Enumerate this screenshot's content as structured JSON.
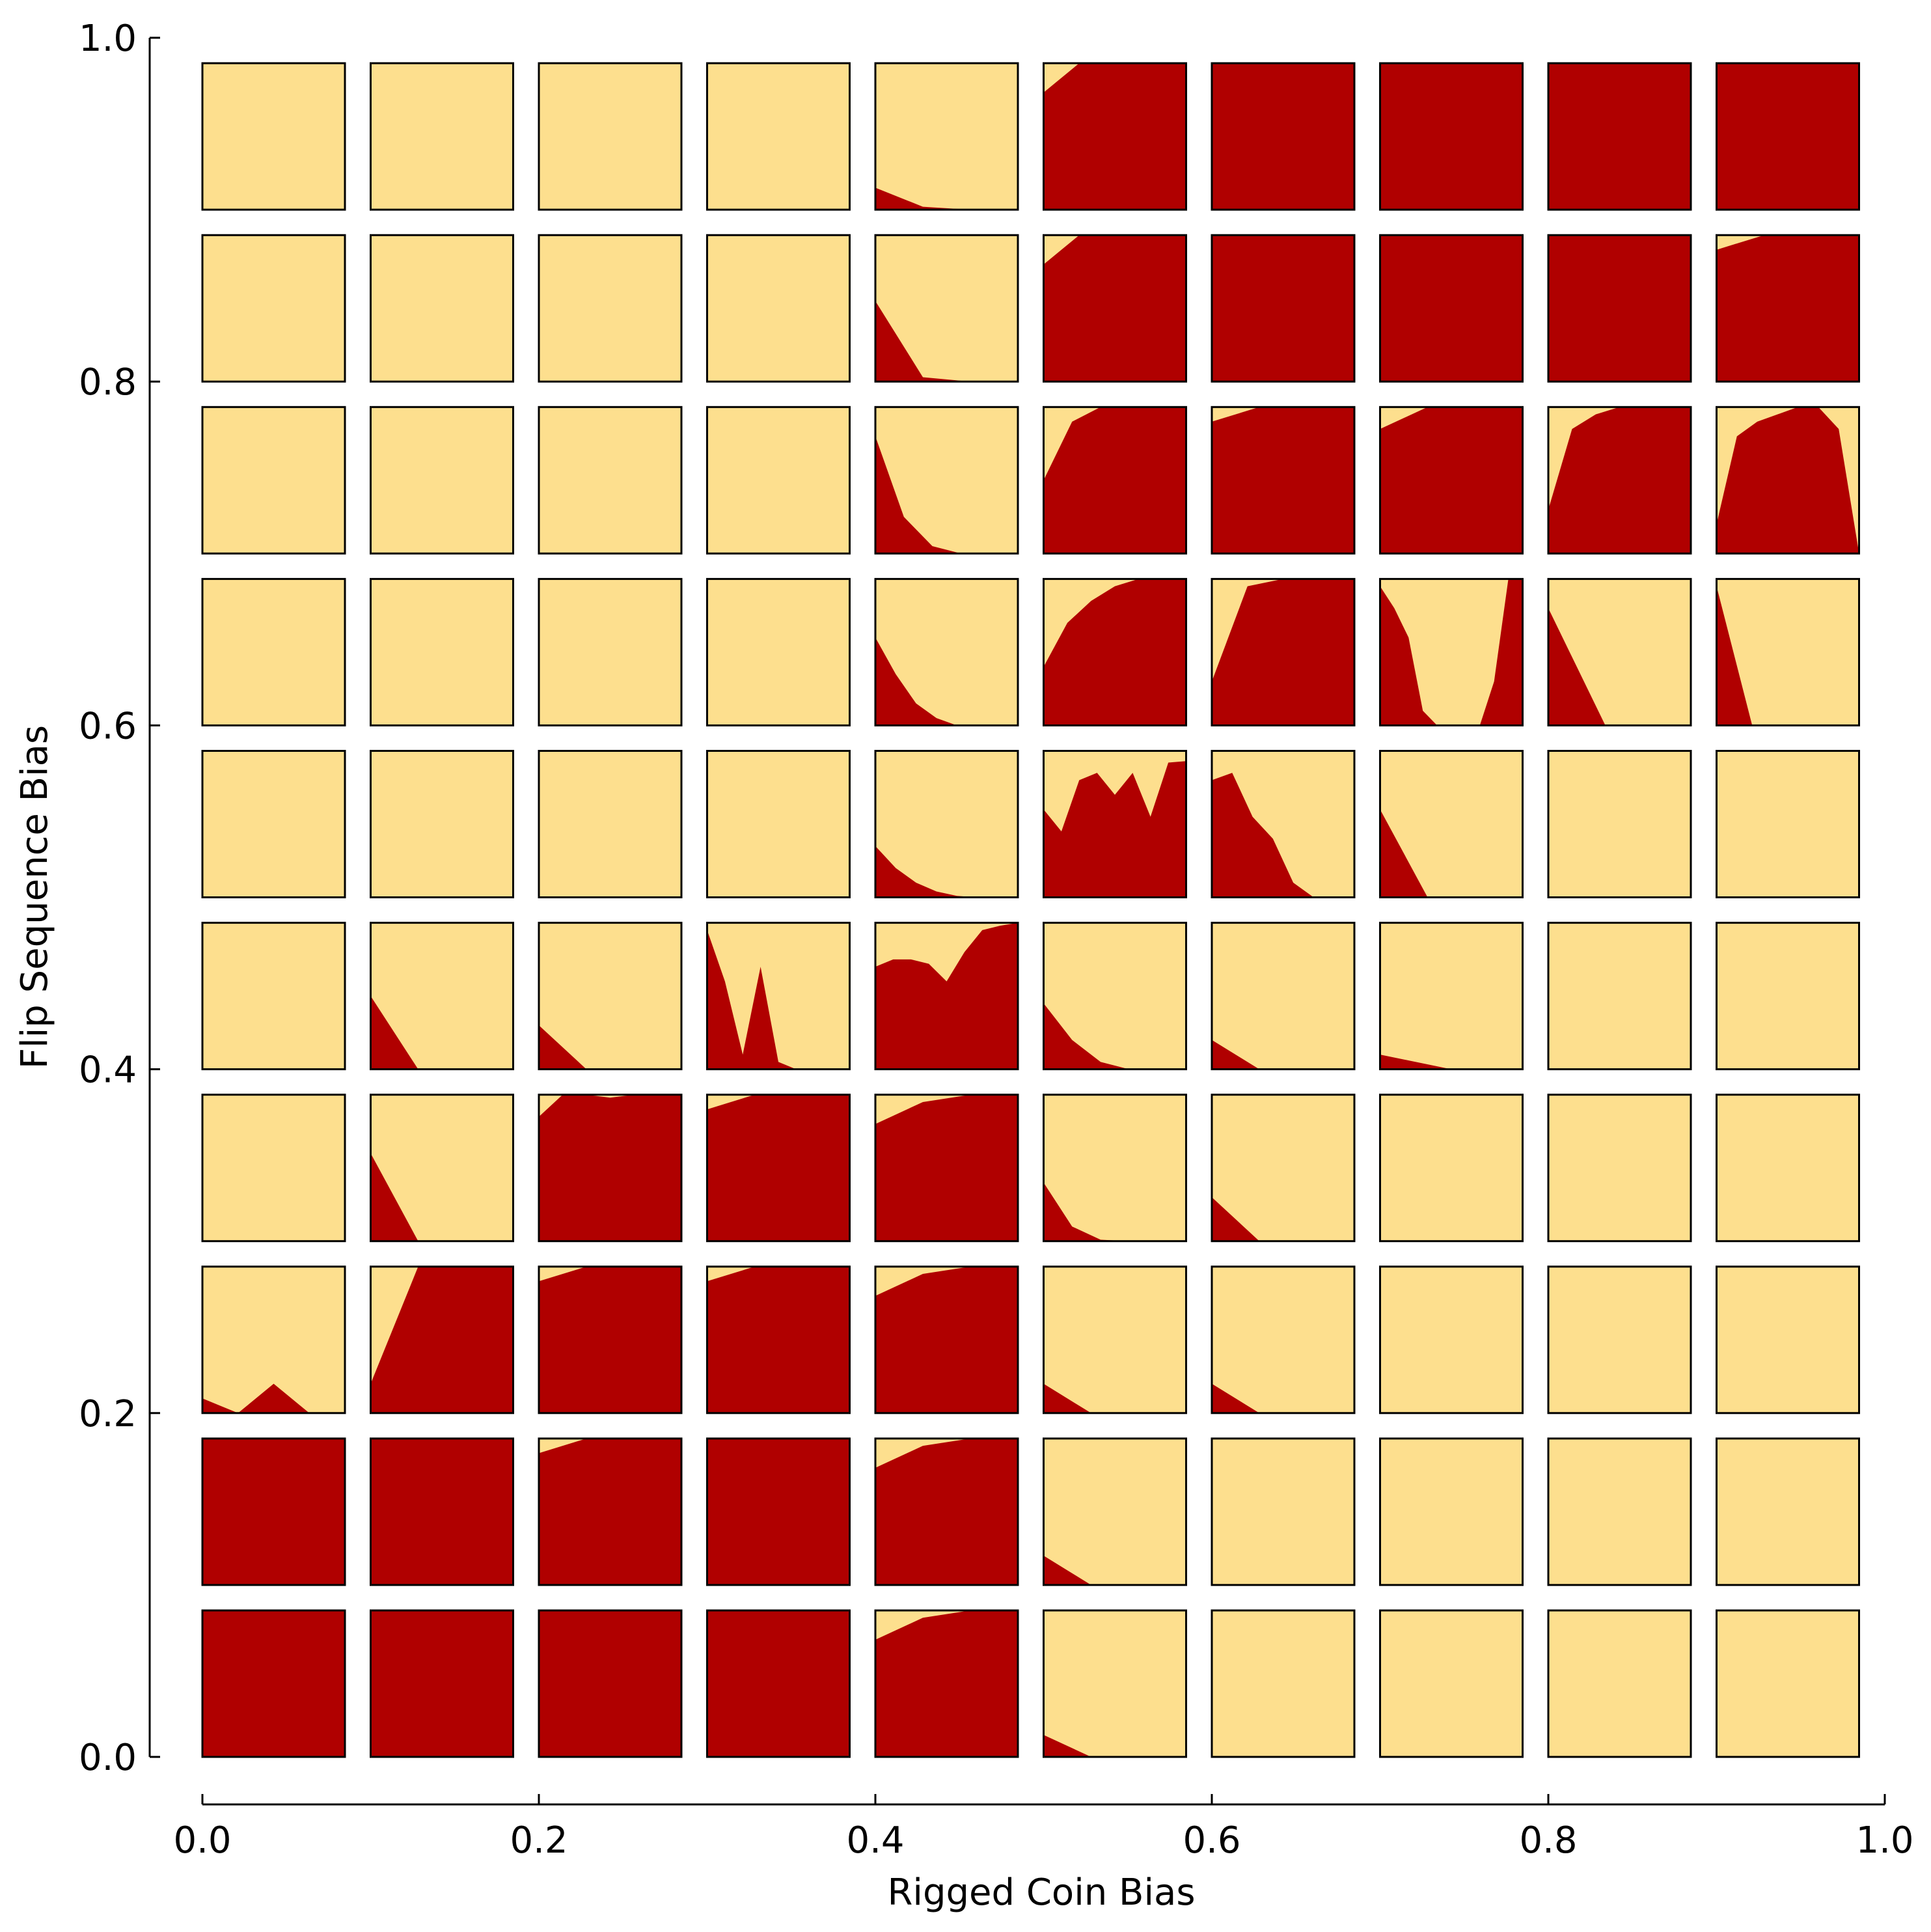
{
  "chart_data": {
    "type": "heatmap",
    "title": "",
    "xlabel": "Rigged Coin Bias",
    "ylabel": "Flip Sequence Bias",
    "xlim": [
      0.0,
      1.0
    ],
    "ylim": [
      0.0,
      1.0
    ],
    "xticks": [
      "0.0",
      "0.2",
      "0.4",
      "0.6",
      "0.8",
      "1.0"
    ],
    "yticks": [
      "0.0",
      "0.2",
      "0.4",
      "0.6",
      "0.8",
      "1.0"
    ],
    "grid": false,
    "legend": "none",
    "grid_size": [
      10,
      10
    ],
    "cell_x_values": [
      0.0,
      0.1,
      0.2,
      0.3,
      0.4,
      0.5,
      0.6,
      0.7,
      0.8,
      0.9
    ],
    "cell_y_values": [
      0.0,
      0.1,
      0.2,
      0.3,
      0.4,
      0.5,
      0.6,
      0.7,
      0.8,
      0.9
    ],
    "colors": {
      "fill_high": "#b00000",
      "fill_low": "#fddf8e",
      "frame": "#000000"
    },
    "cells_description": "Each cell is a mini area plot over its own unit interval: the dark-red area height gives the fraction at each step (0..1). Rows listed from top (y=0.9) to bottom (y=0.0); columns left (x=0.0) to right (x=0.9).",
    "cell_profiles_top_to_bottom": [
      [
        [
          0,
          0
        ],
        [
          0,
          0
        ],
        [
          0,
          0
        ],
        [
          0,
          0
        ],
        [
          0.15,
          0.02,
          0,
          0
        ],
        [
          0.8,
          1,
          1,
          1,
          1
        ],
        [
          1,
          1,
          1,
          1
        ],
        [
          1,
          1,
          1,
          1
        ],
        [
          1,
          1,
          1,
          1
        ],
        [
          1,
          1,
          1,
          1
        ]
      ],
      [
        [
          0,
          0
        ],
        [
          0,
          0
        ],
        [
          0,
          0
        ],
        [
          0,
          0
        ],
        [
          0.55,
          0.03,
          0,
          0
        ],
        [
          0.8,
          1,
          1,
          1,
          1
        ],
        [
          1,
          1,
          1,
          1
        ],
        [
          1,
          1,
          1,
          1
        ],
        [
          1,
          1,
          1,
          1
        ],
        [
          0.9,
          1,
          1,
          1
        ]
      ],
      [
        [
          0,
          0
        ],
        [
          0,
          0
        ],
        [
          0,
          0
        ],
        [
          0,
          0
        ],
        [
          0.8,
          0.25,
          0.05,
          0,
          0,
          0
        ],
        [
          0.5,
          0.9,
          1,
          1,
          1,
          1
        ],
        [
          0.9,
          1,
          1,
          1
        ],
        [
          0.85,
          1,
          1,
          1
        ],
        [
          0.3,
          0.85,
          0.95,
          1,
          1,
          1,
          1
        ],
        [
          0.2,
          0.8,
          0.9,
          0.95,
          1,
          1,
          0.85,
          0
        ]
      ],
      [
        [
          0,
          0
        ],
        [
          0,
          0
        ],
        [
          0,
          0
        ],
        [
          0,
          0
        ],
        [
          0.6,
          0.35,
          0.15,
          0.05,
          0,
          0,
          0,
          0
        ],
        [
          0.4,
          0.7,
          0.85,
          0.95,
          1,
          1,
          1
        ],
        [
          0.3,
          0.95,
          1,
          1,
          1
        ],
        [
          0.95,
          0.8,
          0.6,
          0.1,
          0,
          0,
          0,
          0,
          0.3,
          1,
          1
        ],
        [
          0.8,
          0.4,
          0,
          0,
          0,
          0
        ],
        [
          0.95,
          0,
          0,
          0,
          0
        ]
      ],
      [
        [
          0,
          0
        ],
        [
          0,
          0
        ],
        [
          0,
          0
        ],
        [
          0,
          0
        ],
        [
          0.35,
          0.2,
          0.1,
          0.04,
          0.01,
          0,
          0,
          0
        ],
        [
          0.6,
          0.45,
          0.8,
          0.85,
          0.7,
          0.85,
          0.55,
          0.92,
          0.93
        ],
        [
          0.8,
          0.85,
          0.55,
          0.4,
          0.1,
          0,
          0,
          0
        ],
        [
          0.6,
          0,
          0,
          0
        ],
        [
          0,
          0
        ],
        [
          0,
          0
        ]
      ],
      [
        [
          0,
          0
        ],
        [
          0.5,
          0,
          0,
          0
        ],
        [
          0.3,
          0,
          0,
          0
        ],
        [
          0.95,
          0.6,
          0.1,
          0.7,
          0.05,
          0,
          0,
          0,
          0
        ],
        [
          0.7,
          0.75,
          0.75,
          0.72,
          0.6,
          0.8,
          0.95,
          0.98,
          1
        ],
        [
          0.45,
          0.2,
          0.05,
          0,
          0,
          0
        ],
        [
          0.2,
          0,
          0,
          0
        ],
        [
          0.1,
          0,
          0
        ],
        [
          0,
          0
        ],
        [
          0,
          0
        ]
      ],
      [
        [
          0,
          0
        ],
        [
          0.6,
          0,
          0,
          0
        ],
        [
          0.85,
          1,
          1,
          0.98,
          1,
          1,
          1
        ],
        [
          0.9,
          1,
          1,
          1
        ],
        [
          0.8,
          0.95,
          1,
          1
        ],
        [
          0.4,
          0.1,
          0.01,
          0,
          0,
          0
        ],
        [
          0.3,
          0,
          0,
          0
        ],
        [
          0,
          0
        ],
        [
          0,
          0
        ],
        [
          0,
          0
        ]
      ],
      [
        [
          0.1,
          0,
          0.2,
          0,
          0
        ],
        [
          0.2,
          1,
          1,
          1
        ],
        [
          0.9,
          1,
          1,
          1
        ],
        [
          0.9,
          1,
          1,
          1
        ],
        [
          0.8,
          0.95,
          1,
          1
        ],
        [
          0.2,
          0,
          0,
          0
        ],
        [
          0.2,
          0,
          0,
          0
        ],
        [
          0,
          0
        ],
        [
          0,
          0
        ],
        [
          0,
          0
        ]
      ],
      [
        [
          1,
          1,
          1,
          1
        ],
        [
          1,
          1,
          1,
          1
        ],
        [
          0.9,
          1,
          1,
          1
        ],
        [
          1,
          1,
          1,
          1
        ],
        [
          0.8,
          0.95,
          1,
          1
        ],
        [
          0.2,
          0,
          0,
          0
        ],
        [
          0,
          0
        ],
        [
          0,
          0
        ],
        [
          0,
          0
        ],
        [
          0,
          0
        ]
      ],
      [
        [
          1,
          1,
          1,
          1
        ],
        [
          1,
          1,
          1,
          1
        ],
        [
          1,
          1,
          1,
          1
        ],
        [
          1,
          1,
          1,
          1
        ],
        [
          0.8,
          0.95,
          1,
          1
        ],
        [
          0.15,
          0,
          0,
          0
        ],
        [
          0,
          0
        ],
        [
          0,
          0
        ],
        [
          0,
          0
        ],
        [
          0,
          0
        ]
      ]
    ]
  }
}
